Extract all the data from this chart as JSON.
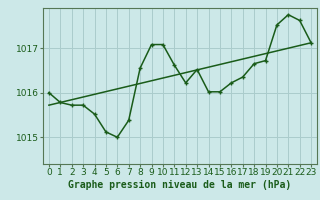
{
  "title": "Graphe pression niveau de la mer (hPa)",
  "bg_color": "#cce8e8",
  "grid_color": "#aacccc",
  "line_color": "#1a5c1a",
  "marker_color": "#1a5c1a",
  "xlim": [
    -0.5,
    23.5
  ],
  "ylim": [
    1014.4,
    1017.9
  ],
  "yticks": [
    1015,
    1016,
    1017
  ],
  "xticks": [
    0,
    1,
    2,
    3,
    4,
    5,
    6,
    7,
    8,
    9,
    10,
    11,
    12,
    13,
    14,
    15,
    16,
    17,
    18,
    19,
    20,
    21,
    22,
    23
  ],
  "curve1_x": [
    0,
    1,
    2,
    3,
    4,
    5,
    6,
    7,
    8,
    9,
    10,
    11,
    12,
    13,
    14,
    15,
    16,
    17,
    18,
    19,
    20,
    21,
    22,
    23
  ],
  "curve1_y": [
    1016.0,
    1015.78,
    1015.72,
    1015.72,
    1015.52,
    1015.12,
    1015.0,
    1015.38,
    1016.55,
    1017.08,
    1017.08,
    1016.62,
    1016.22,
    1016.52,
    1016.02,
    1016.02,
    1016.22,
    1016.35,
    1016.65,
    1016.72,
    1017.52,
    1017.75,
    1017.62,
    1017.12
  ],
  "curve2_x": [
    0,
    23
  ],
  "curve2_y": [
    1015.72,
    1017.12
  ],
  "xlabel_fontsize": 7,
  "tick_fontsize": 6.5,
  "spine_color": "#557755"
}
